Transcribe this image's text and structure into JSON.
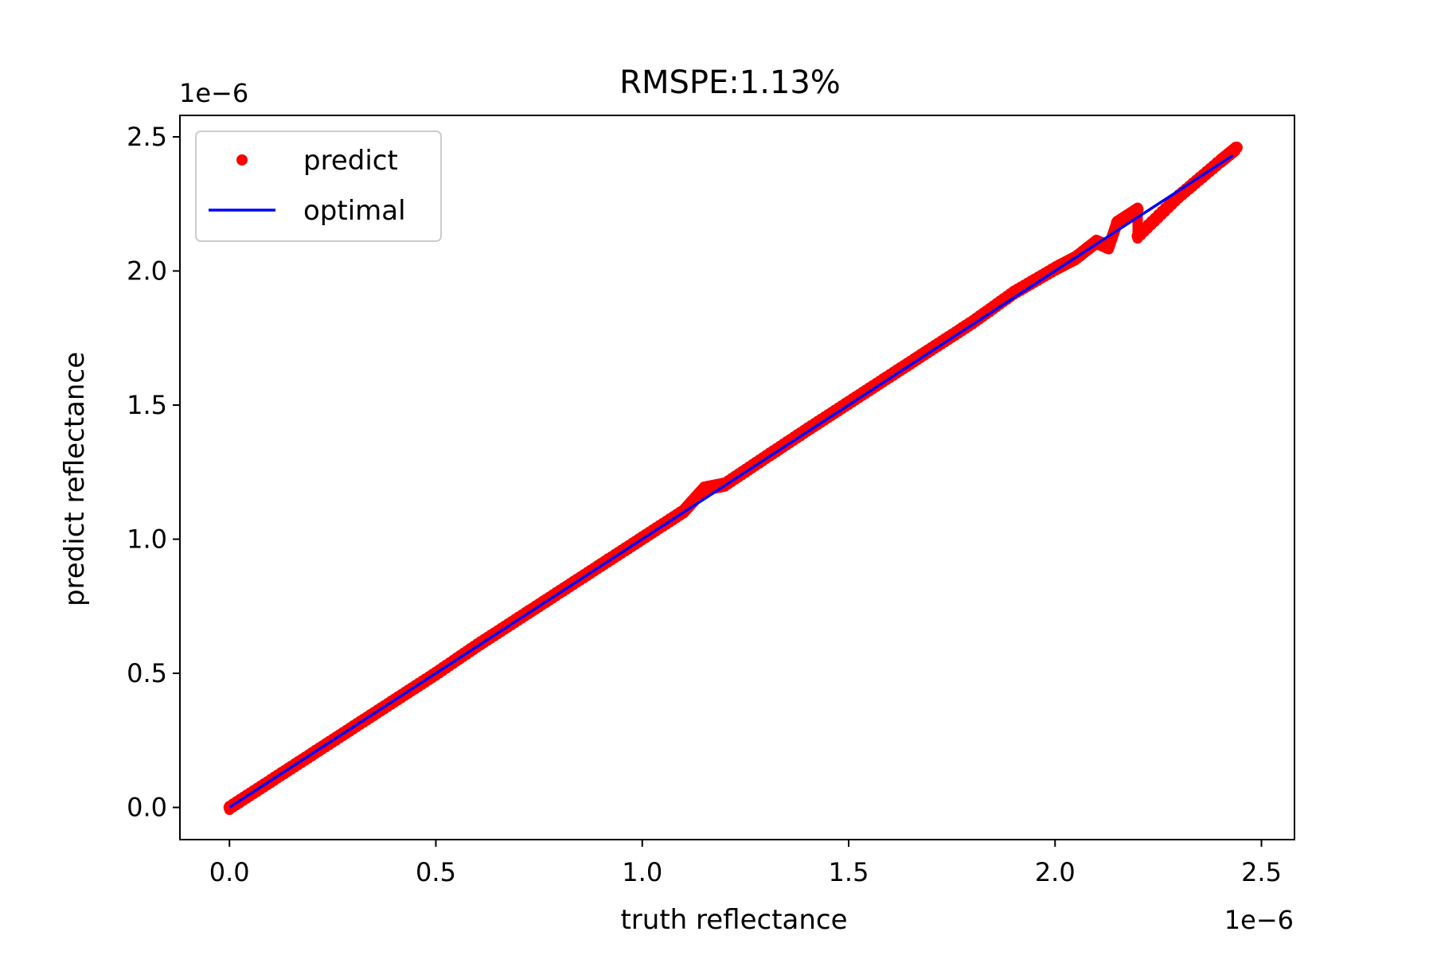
{
  "chart_data": {
    "type": "scatter",
    "title": "RMSPE:1.13%",
    "xlabel": "truth reflectance",
    "ylabel": "predict reflectance",
    "x_offset_label": "1e−6",
    "y_offset_label": "1e−6",
    "xlim": [
      -1.2e-07,
      2.58e-06
    ],
    "ylim": [
      -1.2e-07,
      2.58e-06
    ],
    "xticks": [
      0,
      5e-07,
      1e-06,
      1.5e-06,
      2e-06,
      2.5e-06
    ],
    "yticks": [
      0,
      5e-07,
      1e-06,
      1.5e-06,
      2e-06,
      2.5e-06
    ],
    "xtick_labels": [
      "0.0",
      "0.5",
      "1.0",
      "1.5",
      "2.0",
      "2.5"
    ],
    "ytick_labels": [
      "0.0",
      "0.5",
      "1.0",
      "1.5",
      "2.0",
      "2.5"
    ],
    "grid": false,
    "legend_position": "upper-left",
    "series": [
      {
        "name": "predict",
        "kind": "scatter",
        "color": "#ff0000",
        "points": [
          [
            0,
            0
          ],
          [
            1e-07,
            1e-07
          ],
          [
            2e-07,
            2e-07
          ],
          [
            3e-07,
            3e-07
          ],
          [
            4e-07,
            4e-07
          ],
          [
            5e-07,
            5e-07
          ],
          [
            6e-07,
            6.05e-07
          ],
          [
            7e-07,
            7.05e-07
          ],
          [
            8e-07,
            8.05e-07
          ],
          [
            9e-07,
            9.05e-07
          ],
          [
            1e-06,
            1.005e-06
          ],
          [
            1.1e-06,
            1.105e-06
          ],
          [
            1.15e-06,
            1.19e-06
          ],
          [
            1.2e-06,
            1.205e-06
          ],
          [
            1.3e-06,
            1.308e-06
          ],
          [
            1.4e-06,
            1.41e-06
          ],
          [
            1.5e-06,
            1.51e-06
          ],
          [
            1.6e-06,
            1.61e-06
          ],
          [
            1.7e-06,
            1.71e-06
          ],
          [
            1.8e-06,
            1.81e-06
          ],
          [
            1.9e-06,
            1.92e-06
          ],
          [
            2e-06,
            2.01e-06
          ],
          [
            2.05e-06,
            2.05e-06
          ],
          [
            2.1e-06,
            2.11e-06
          ],
          [
            2.13e-06,
            2.09e-06
          ],
          [
            2.15e-06,
            2.18e-06
          ],
          [
            2.2e-06,
            2.23e-06
          ],
          [
            2.2e-06,
            2.13e-06
          ],
          [
            2.3e-06,
            2.28e-06
          ],
          [
            2.4e-06,
            2.41e-06
          ],
          [
            2.44e-06,
            2.46e-06
          ]
        ]
      },
      {
        "name": "optimal",
        "kind": "line",
        "color": "#0000ff",
        "points": [
          [
            0,
            0
          ],
          [
            2.43e-06,
            2.43e-06
          ]
        ]
      }
    ]
  }
}
